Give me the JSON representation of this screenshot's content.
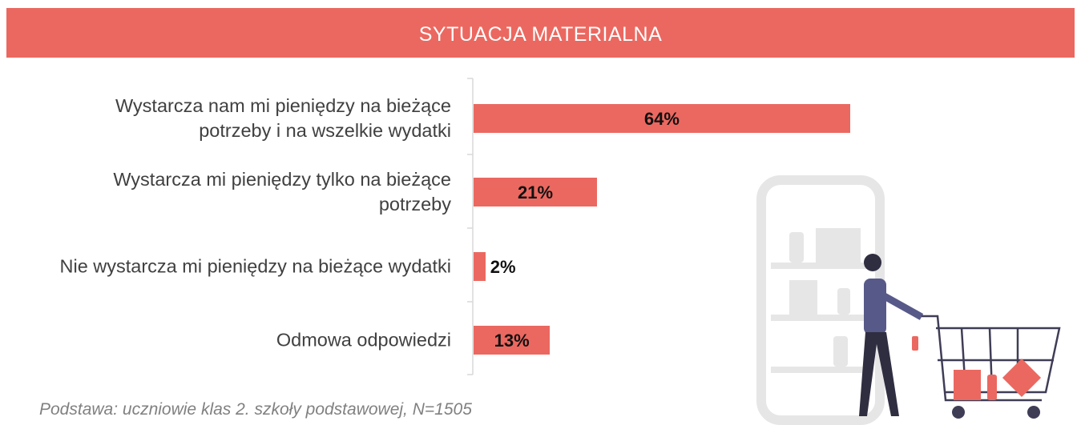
{
  "chart_data": {
    "type": "bar",
    "orientation": "horizontal",
    "title": "SYTUACJA MATERIALNA",
    "categories": [
      "Wystarcza nam mi pieniędzy na bieżące potrzeby i na wszelkie wydatki",
      "Wystarcza mi pieniędzy tylko na bieżące potrzeby",
      "Nie wystarcza mi pieniędzy na bieżące wydatki",
      "Odmowa odpowiedzi"
    ],
    "values": [
      64,
      21,
      2,
      13
    ],
    "value_labels": [
      "64%",
      "21%",
      "2%",
      "13%"
    ],
    "color": "#eb6860",
    "xlim": [
      0,
      100
    ],
    "note": "Podstawa: uczniowie klas 2. szkoły podstawowej, N=1505"
  }
}
